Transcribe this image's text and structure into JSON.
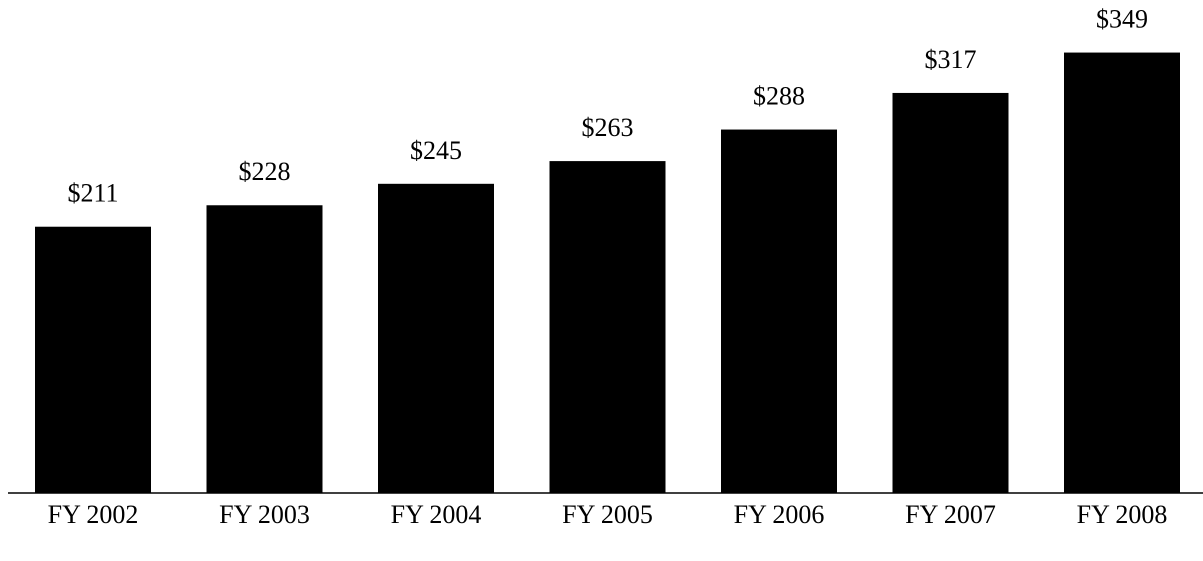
{
  "chart_data": {
    "type": "bar",
    "categories": [
      "FY 2002",
      "FY 2003",
      "FY 2004",
      "FY 2005",
      "FY 2006",
      "FY 2007",
      "FY 2008"
    ],
    "values": [
      211,
      228,
      245,
      263,
      288,
      317,
      349
    ],
    "value_labels": [
      "$211",
      "$228",
      "$245",
      "$263",
      "$288",
      "$317",
      "$349"
    ],
    "color": "#000000"
  }
}
